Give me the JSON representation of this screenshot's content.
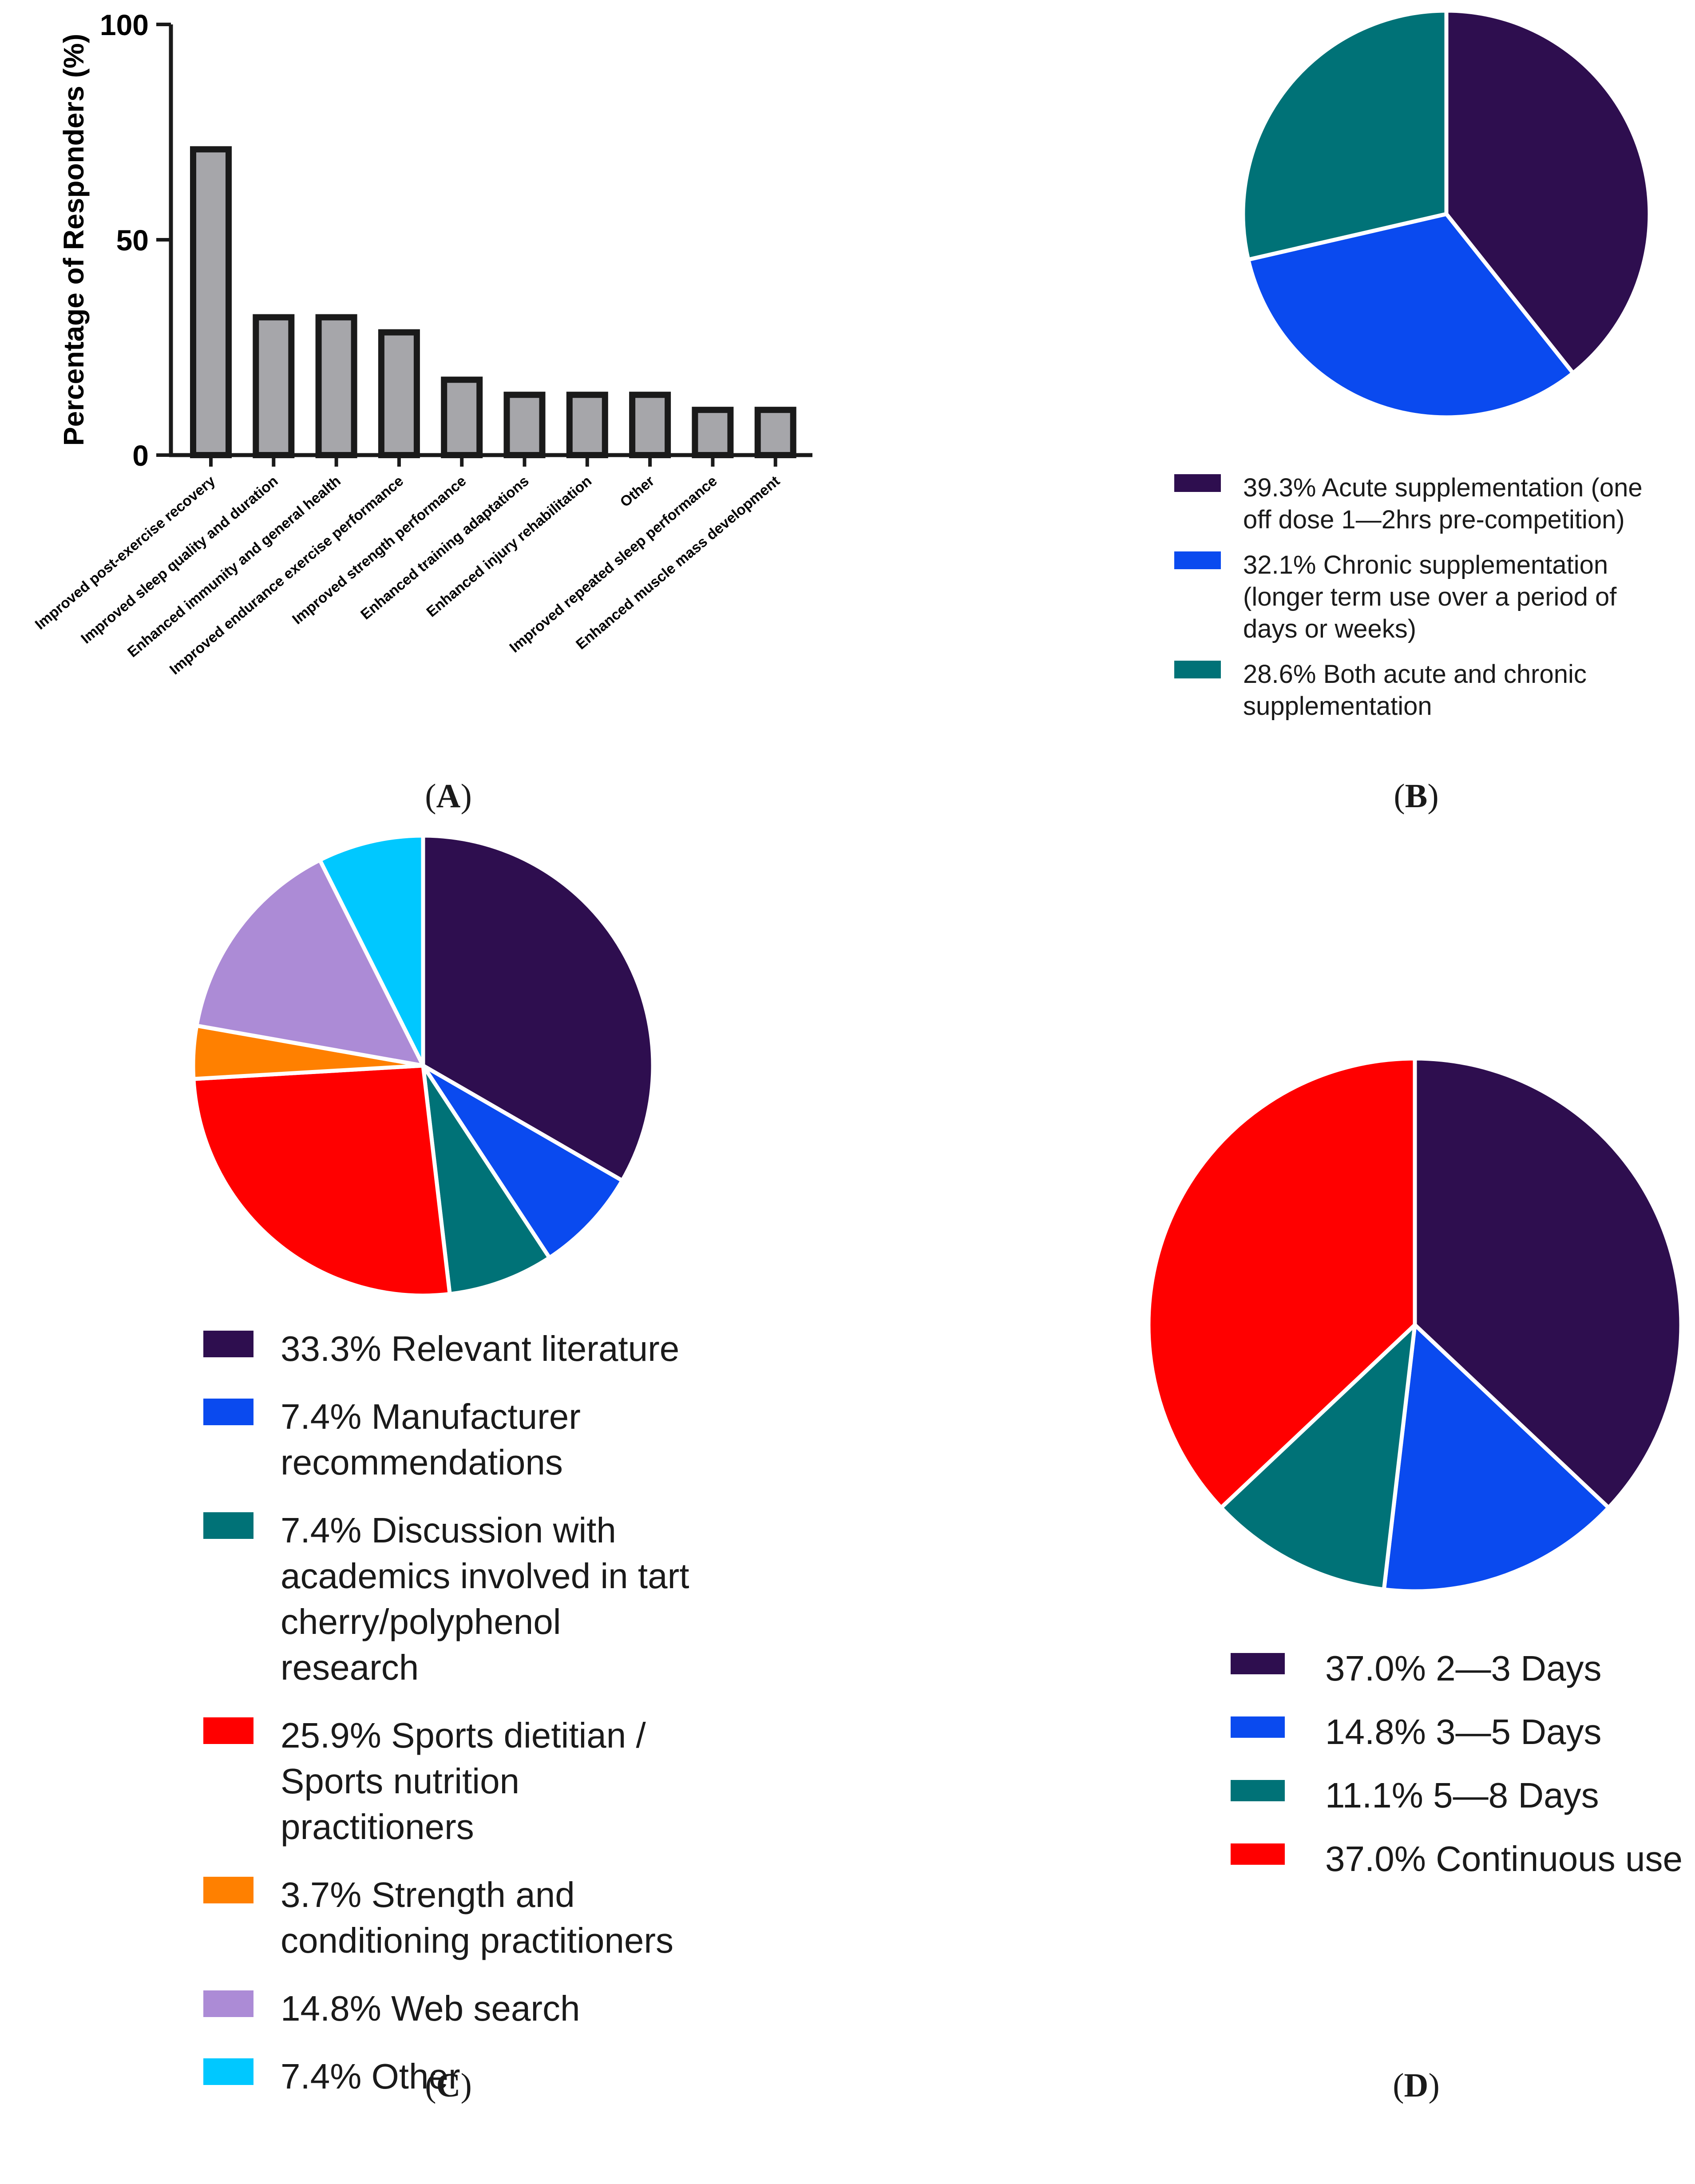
{
  "chart_data": [
    {
      "type": "bar",
      "panel": "A",
      "panel_label": "A",
      "ylabel": "Percentage of Responders (%)",
      "ylim": [
        0,
        100
      ],
      "yticks": [
        "0",
        "50",
        "100"
      ],
      "categories": [
        "Improved post-exercise recovery",
        "Improved sleep quality and duration",
        "Enhanced immunity and general health",
        "Improved endurance exercise performance",
        "Improved strength performance",
        "Enhanced training adaptations",
        "Enhanced injury rehabilitation",
        "Other",
        "Improved repeated sleep performance",
        "Enhanced muscle mass development"
      ],
      "values": [
        71,
        32,
        32,
        28.5,
        17.5,
        14,
        14,
        14,
        10.5,
        10.5
      ],
      "colors": {
        "bar_fill": "#a6a6aa",
        "bar_stroke": "#1a1a1a"
      }
    },
    {
      "type": "pie",
      "panel": "B",
      "panel_label": "B",
      "slices": [
        {
          "value": 39.3,
          "label": "39.3% Acute supplementation (one off dose 1—2hrs pre-competition)",
          "lines": [
            "39.3% Acute supplementation (one",
            "off dose 1—2hrs pre-competition)"
          ],
          "color": "#2e0e4f"
        },
        {
          "value": 32.1,
          "label": "32.1% Chronic supplementation (longer term use over a period of days or weeks)",
          "lines": [
            "32.1% Chronic supplementation",
            "(longer term use over a period of",
            "days or weeks)"
          ],
          "color": "#0a4aef"
        },
        {
          "value": 28.6,
          "label": "28.6% Both acute and chronic supplementation",
          "lines": [
            "28.6% Both acute and chronic",
            "supplementation"
          ],
          "color": "#007277"
        }
      ]
    },
    {
      "type": "pie",
      "panel": "C",
      "panel_label": "C",
      "slices": [
        {
          "value": 33.3,
          "label": "33.3% Relevant literature",
          "lines": [
            "33.3% Relevant literature"
          ],
          "color": "#2e0e4f"
        },
        {
          "value": 7.4,
          "label": "7.4% Manufacturer recommendations",
          "lines": [
            "7.4% Manufacturer",
            "recommendations"
          ],
          "color": "#0a4aef"
        },
        {
          "value": 7.4,
          "label": "7.4% Discussion with academics involved in tart cherry/polyphenol research",
          "lines": [
            "7.4% Discussion with",
            "academics involved in tart",
            "cherry/polyphenol",
            "research"
          ],
          "color": "#007277"
        },
        {
          "value": 25.9,
          "label": "25.9% Sports dietitian / Sports nutrition practitioners",
          "lines": [
            "25.9% Sports dietitian /",
            "Sports nutrition",
            "practitioners"
          ],
          "color": "#ff0000"
        },
        {
          "value": 3.7,
          "label": "3.7% Strength and conditioning practitioners",
          "lines": [
            "3.7% Strength and",
            "conditioning practitioners"
          ],
          "color": "#ff8000"
        },
        {
          "value": 14.8,
          "label": "14.8% Web search",
          "lines": [
            "14.8% Web search"
          ],
          "color": "#ac8bd6"
        },
        {
          "value": 7.4,
          "label": "7.4% Other",
          "lines": [
            "7.4% Other"
          ],
          "color": "#00c8ff"
        }
      ]
    },
    {
      "type": "pie",
      "panel": "D",
      "panel_label": "D",
      "slices": [
        {
          "value": 37.0,
          "label": "37.0% 2—3 Days",
          "lines": [
            "37.0% 2—3 Days"
          ],
          "color": "#2e0e4f"
        },
        {
          "value": 14.8,
          "label": "14.8% 3—5 Days",
          "lines": [
            "14.8% 3—5 Days"
          ],
          "color": "#0a4aef"
        },
        {
          "value": 11.1,
          "label": "11.1% 5—8 Days",
          "lines": [
            "11.1% 5—8 Days"
          ],
          "color": "#007277"
        },
        {
          "value": 37.0,
          "label": "37.0% Continuous use",
          "lines": [
            "37.0% Continuous use"
          ],
          "color": "#ff0000"
        }
      ]
    }
  ]
}
